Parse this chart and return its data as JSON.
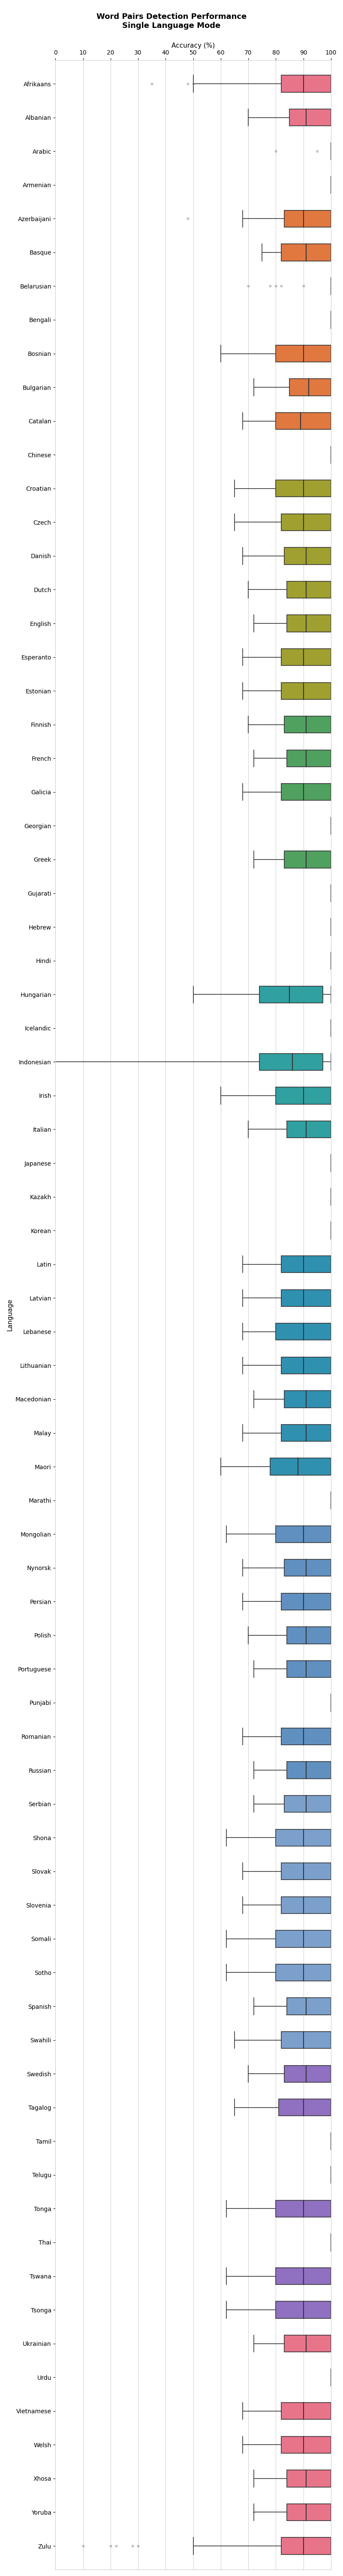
{
  "title": "Word Pairs Detection Performance\nSingle Language Mode",
  "xlabel": "Accuracy (%)",
  "xlim": [
    0,
    100
  ],
  "xticks": [
    0,
    10,
    20,
    30,
    40,
    50,
    60,
    70,
    80,
    90,
    100
  ],
  "figsize": [
    8,
    60
  ],
  "languages": [
    "Afrikaans",
    "Albanian",
    "Arabic",
    "Armenian",
    "Azerbaijani",
    "Basque",
    "Belarusian",
    "Bengali",
    "Bosnian",
    "Bulgarian",
    "Catalan",
    "Chinese",
    "Croatian",
    "Czech",
    "Danish",
    "Dutch",
    "English",
    "Esperanto",
    "Estonian",
    "Finnish",
    "French",
    "Galicia",
    "Georgian",
    "Greek",
    "Gujarati",
    "Hebrew",
    "Hindi",
    "Hungarian",
    "Icelandic",
    "Indonesian",
    "Irish",
    "Italian",
    "Japanese",
    "Kazakh",
    "Korean",
    "Latin",
    "Latvian",
    "Lebanese",
    "Lithuanian",
    "Macedonian",
    "Malay",
    "Maori",
    "Marathi",
    "Mongolian",
    "Nynorsk",
    "Persian",
    "Polish",
    "Portuguese",
    "Punjabi",
    "Romanian",
    "Russian",
    "Serbian",
    "Shona",
    "Slovak",
    "Slovenia",
    "Somali",
    "Sotho",
    "Spanish",
    "Swahili",
    "Swedish",
    "Tagalog",
    "Tamil",
    "Telugu",
    "Tonga",
    "Thai",
    "Tswana",
    "Tsonga",
    "Ukrainian",
    "Urdu",
    "Vietnamese",
    "Welsh",
    "Xhosa",
    "Yoruba",
    "Zulu"
  ],
  "box_data": {
    "Afrikaans": {
      "whislo": 50,
      "q1": 82,
      "med": 90,
      "q3": 100,
      "whishi": 100,
      "fliers": [
        35,
        48,
        50
      ]
    },
    "Albanian": {
      "whislo": 70,
      "q1": 85,
      "med": 91,
      "q3": 100,
      "whishi": 100,
      "fliers": []
    },
    "Arabic": {
      "whislo": 100,
      "q1": 100,
      "med": 100,
      "q3": 100,
      "whishi": 100,
      "fliers": [
        80,
        95
      ]
    },
    "Armenian": {
      "whislo": 100,
      "q1": 100,
      "med": 100,
      "q3": 100,
      "whishi": 100,
      "fliers": []
    },
    "Azerbaijani": {
      "whislo": 68,
      "q1": 83,
      "med": 90,
      "q3": 100,
      "whishi": 100,
      "fliers": [
        48
      ]
    },
    "Basque": {
      "whislo": 75,
      "q1": 82,
      "med": 91,
      "q3": 100,
      "whishi": 100,
      "fliers": []
    },
    "Belarusian": {
      "whislo": 100,
      "q1": 100,
      "med": 100,
      "q3": 100,
      "whishi": 100,
      "fliers": [
        70,
        78,
        80,
        82,
        90
      ]
    },
    "Bengali": {
      "whislo": 100,
      "q1": 100,
      "med": 100,
      "q3": 100,
      "whishi": 100,
      "fliers": []
    },
    "Bosnian": {
      "whislo": 60,
      "q1": 80,
      "med": 90,
      "q3": 100,
      "whishi": 100,
      "fliers": []
    },
    "Bulgarian": {
      "whislo": 72,
      "q1": 85,
      "med": 92,
      "q3": 100,
      "whishi": 100,
      "fliers": []
    },
    "Catalan": {
      "whislo": 68,
      "q1": 80,
      "med": 89,
      "q3": 100,
      "whishi": 100,
      "fliers": []
    },
    "Chinese": {
      "whislo": 100,
      "q1": 100,
      "med": 100,
      "q3": 100,
      "whishi": 100,
      "fliers": []
    },
    "Croatian": {
      "whislo": 65,
      "q1": 80,
      "med": 90,
      "q3": 100,
      "whishi": 100,
      "fliers": []
    },
    "Czech": {
      "whislo": 65,
      "q1": 82,
      "med": 90,
      "q3": 100,
      "whishi": 100,
      "fliers": []
    },
    "Danish": {
      "whislo": 68,
      "q1": 83,
      "med": 91,
      "q3": 100,
      "whishi": 100,
      "fliers": []
    },
    "Dutch": {
      "whislo": 70,
      "q1": 84,
      "med": 91,
      "q3": 100,
      "whishi": 100,
      "fliers": []
    },
    "English": {
      "whislo": 72,
      "q1": 84,
      "med": 91,
      "q3": 100,
      "whishi": 100,
      "fliers": []
    },
    "Esperanto": {
      "whislo": 68,
      "q1": 82,
      "med": 90,
      "q3": 100,
      "whishi": 100,
      "fliers": []
    },
    "Estonian": {
      "whislo": 68,
      "q1": 82,
      "med": 90,
      "q3": 100,
      "whishi": 100,
      "fliers": []
    },
    "Finnish": {
      "whislo": 70,
      "q1": 83,
      "med": 91,
      "q3": 100,
      "whishi": 100,
      "fliers": []
    },
    "French": {
      "whislo": 72,
      "q1": 84,
      "med": 91,
      "q3": 100,
      "whishi": 100,
      "fliers": []
    },
    "Galicia": {
      "whislo": 68,
      "q1": 82,
      "med": 90,
      "q3": 100,
      "whishi": 100,
      "fliers": []
    },
    "Georgian": {
      "whislo": 100,
      "q1": 100,
      "med": 100,
      "q3": 100,
      "whishi": 100,
      "fliers": []
    },
    "Greek": {
      "whislo": 72,
      "q1": 83,
      "med": 91,
      "q3": 100,
      "whishi": 100,
      "fliers": []
    },
    "Gujarati": {
      "whislo": 100,
      "q1": 100,
      "med": 100,
      "q3": 100,
      "whishi": 100,
      "fliers": []
    },
    "Hebrew": {
      "whislo": 100,
      "q1": 100,
      "med": 100,
      "q3": 100,
      "whishi": 100,
      "fliers": []
    },
    "Hindi": {
      "whislo": 100,
      "q1": 100,
      "med": 100,
      "q3": 100,
      "whishi": 100,
      "fliers": []
    },
    "Hungarian": {
      "whislo": 50,
      "q1": 74,
      "med": 85,
      "q3": 97,
      "whishi": 100,
      "fliers": []
    },
    "Icelandic": {
      "whislo": 100,
      "q1": 100,
      "med": 100,
      "q3": 100,
      "whishi": 100,
      "fliers": []
    },
    "Indonesian": {
      "whislo": 0,
      "q1": 74,
      "med": 86,
      "q3": 97,
      "whishi": 100,
      "fliers": []
    },
    "Irish": {
      "whislo": 60,
      "q1": 80,
      "med": 90,
      "q3": 100,
      "whishi": 100,
      "fliers": []
    },
    "Italian": {
      "whislo": 70,
      "q1": 84,
      "med": 91,
      "q3": 100,
      "whishi": 100,
      "fliers": []
    },
    "Japanese": {
      "whislo": 100,
      "q1": 100,
      "med": 100,
      "q3": 100,
      "whishi": 100,
      "fliers": []
    },
    "Kazakh": {
      "whislo": 100,
      "q1": 100,
      "med": 100,
      "q3": 100,
      "whishi": 100,
      "fliers": []
    },
    "Korean": {
      "whislo": 100,
      "q1": 100,
      "med": 100,
      "q3": 100,
      "whishi": 100,
      "fliers": []
    },
    "Latin": {
      "whislo": 68,
      "q1": 82,
      "med": 90,
      "q3": 100,
      "whishi": 100,
      "fliers": []
    },
    "Latvian": {
      "whislo": 68,
      "q1": 82,
      "med": 90,
      "q3": 100,
      "whishi": 100,
      "fliers": []
    },
    "Lebanese": {
      "whislo": 68,
      "q1": 80,
      "med": 90,
      "q3": 100,
      "whishi": 100,
      "fliers": []
    },
    "Lithuanian": {
      "whislo": 68,
      "q1": 82,
      "med": 90,
      "q3": 100,
      "whishi": 100,
      "fliers": []
    },
    "Macedonian": {
      "whislo": 72,
      "q1": 83,
      "med": 91,
      "q3": 100,
      "whishi": 100,
      "fliers": []
    },
    "Malay": {
      "whislo": 68,
      "q1": 82,
      "med": 91,
      "q3": 100,
      "whishi": 100,
      "fliers": []
    },
    "Maori": {
      "whislo": 60,
      "q1": 78,
      "med": 88,
      "q3": 100,
      "whishi": 100,
      "fliers": []
    },
    "Marathi": {
      "whislo": 100,
      "q1": 100,
      "med": 100,
      "q3": 100,
      "whishi": 100,
      "fliers": []
    },
    "Mongolian": {
      "whislo": 62,
      "q1": 80,
      "med": 90,
      "q3": 100,
      "whishi": 100,
      "fliers": []
    },
    "Nynorsk": {
      "whislo": 68,
      "q1": 83,
      "med": 91,
      "q3": 100,
      "whishi": 100,
      "fliers": []
    },
    "Persian": {
      "whislo": 68,
      "q1": 82,
      "med": 90,
      "q3": 100,
      "whishi": 100,
      "fliers": []
    },
    "Polish": {
      "whislo": 70,
      "q1": 84,
      "med": 91,
      "q3": 100,
      "whishi": 100,
      "fliers": []
    },
    "Portuguese": {
      "whislo": 72,
      "q1": 84,
      "med": 91,
      "q3": 100,
      "whishi": 100,
      "fliers": []
    },
    "Punjabi": {
      "whislo": 100,
      "q1": 100,
      "med": 100,
      "q3": 100,
      "whishi": 100,
      "fliers": []
    },
    "Romanian": {
      "whislo": 68,
      "q1": 82,
      "med": 90,
      "q3": 100,
      "whishi": 100,
      "fliers": []
    },
    "Russian": {
      "whislo": 72,
      "q1": 84,
      "med": 91,
      "q3": 100,
      "whishi": 100,
      "fliers": []
    },
    "Serbian": {
      "whislo": 72,
      "q1": 83,
      "med": 91,
      "q3": 100,
      "whishi": 100,
      "fliers": []
    },
    "Shona": {
      "whislo": 62,
      "q1": 80,
      "med": 90,
      "q3": 100,
      "whishi": 100,
      "fliers": []
    },
    "Slovak": {
      "whislo": 68,
      "q1": 82,
      "med": 90,
      "q3": 100,
      "whishi": 100,
      "fliers": []
    },
    "Slovenia": {
      "whislo": 68,
      "q1": 82,
      "med": 90,
      "q3": 100,
      "whishi": 100,
      "fliers": []
    },
    "Somali": {
      "whislo": 62,
      "q1": 80,
      "med": 90,
      "q3": 100,
      "whishi": 100,
      "fliers": []
    },
    "Sotho": {
      "whislo": 62,
      "q1": 80,
      "med": 90,
      "q3": 100,
      "whishi": 100,
      "fliers": []
    },
    "Spanish": {
      "whislo": 72,
      "q1": 84,
      "med": 91,
      "q3": 100,
      "whishi": 100,
      "fliers": []
    },
    "Swahili": {
      "whislo": 65,
      "q1": 82,
      "med": 90,
      "q3": 100,
      "whishi": 100,
      "fliers": []
    },
    "Swedish": {
      "whislo": 70,
      "q1": 83,
      "med": 91,
      "q3": 100,
      "whishi": 100,
      "fliers": []
    },
    "Tagalog": {
      "whislo": 65,
      "q1": 81,
      "med": 90,
      "q3": 100,
      "whishi": 100,
      "fliers": []
    },
    "Tamil": {
      "whislo": 100,
      "q1": 100,
      "med": 100,
      "q3": 100,
      "whishi": 100,
      "fliers": []
    },
    "Telugu": {
      "whislo": 100,
      "q1": 100,
      "med": 100,
      "q3": 100,
      "whishi": 100,
      "fliers": []
    },
    "Tonga": {
      "whislo": 62,
      "q1": 80,
      "med": 90,
      "q3": 100,
      "whishi": 100,
      "fliers": []
    },
    "Thai": {
      "whislo": 100,
      "q1": 100,
      "med": 100,
      "q3": 100,
      "whishi": 100,
      "fliers": []
    },
    "Tswana": {
      "whislo": 62,
      "q1": 80,
      "med": 90,
      "q3": 100,
      "whishi": 100,
      "fliers": []
    },
    "Tsonga": {
      "whislo": 62,
      "q1": 80,
      "med": 90,
      "q3": 100,
      "whishi": 100,
      "fliers": []
    },
    "Ukrainian": {
      "whislo": 72,
      "q1": 83,
      "med": 91,
      "q3": 100,
      "whishi": 100,
      "fliers": []
    },
    "Urdu": {
      "whislo": 100,
      "q1": 100,
      "med": 100,
      "q3": 100,
      "whishi": 100,
      "fliers": []
    },
    "Vietnamese": {
      "whislo": 68,
      "q1": 82,
      "med": 90,
      "q3": 100,
      "whishi": 100,
      "fliers": []
    },
    "Welsh": {
      "whislo": 68,
      "q1": 82,
      "med": 90,
      "q3": 100,
      "whishi": 100,
      "fliers": []
    },
    "Xhosa": {
      "whislo": 72,
      "q1": 84,
      "med": 91,
      "q3": 100,
      "whishi": 100,
      "fliers": []
    },
    "Yoruba": {
      "whislo": 72,
      "q1": 84,
      "med": 91,
      "q3": 100,
      "whishi": 100,
      "fliers": [
        72
      ]
    },
    "Zulu": {
      "whislo": 50,
      "q1": 82,
      "med": 90,
      "q3": 100,
      "whishi": 100,
      "fliers": [
        10,
        20,
        22,
        28,
        30
      ]
    }
  },
  "color_groups": {
    "pink": [
      "Afrikaans",
      "Albanian",
      "Arabic",
      "Armenian",
      "Welsh",
      "Xhosa",
      "Yoruba",
      "Zulu",
      "Vietnamese",
      "Ukrainian",
      "Urdu"
    ],
    "orange": [
      "Azerbaijani",
      "Basque",
      "Belarusian",
      "Bengali",
      "Bosnian",
      "Bulgarian",
      "Catalan"
    ],
    "olive": [
      "Chinese",
      "Croatian",
      "Czech",
      "Danish",
      "Dutch",
      "English",
      "Esperanto",
      "Estonian"
    ],
    "green_teal": [
      "Finnish",
      "French",
      "Galicia",
      "Georgian",
      "Greek",
      "Gujarati",
      "Hebrew"
    ],
    "teal": [
      "Hindi",
      "Hungarian",
      "Icelandic",
      "Indonesian",
      "Irish",
      "Italian",
      "Japanese",
      "Kazakh",
      "Korean"
    ],
    "blue_teal": [
      "Latin",
      "Latvian",
      "Lebanese",
      "Lithuanian",
      "Macedonian",
      "Malay",
      "Maori",
      "Marathi"
    ],
    "steel_blue": [
      "Mongolian",
      "Nynorsk",
      "Persian",
      "Polish",
      "Portuguese",
      "Punjabi",
      "Romanian",
      "Russian"
    ],
    "light_blue": [
      "Serbian",
      "Shona",
      "Slovak",
      "Slovenia",
      "Somali",
      "Sotho",
      "Spanish",
      "Swahili"
    ],
    "lavender": [
      "Swedish",
      "Tagalog",
      "Tamil",
      "Telugu",
      "Tonga",
      "Thai",
      "Tswana",
      "Tsonga"
    ]
  },
  "colors": {
    "pink": "#E8748A",
    "orange": "#E07840",
    "olive": "#A0A030",
    "green_teal": "#50A060",
    "teal": "#30A0A0",
    "blue_teal": "#3090B0",
    "steel_blue": "#6090C0",
    "light_blue": "#7BA0CC",
    "lavender": "#9070C0"
  }
}
